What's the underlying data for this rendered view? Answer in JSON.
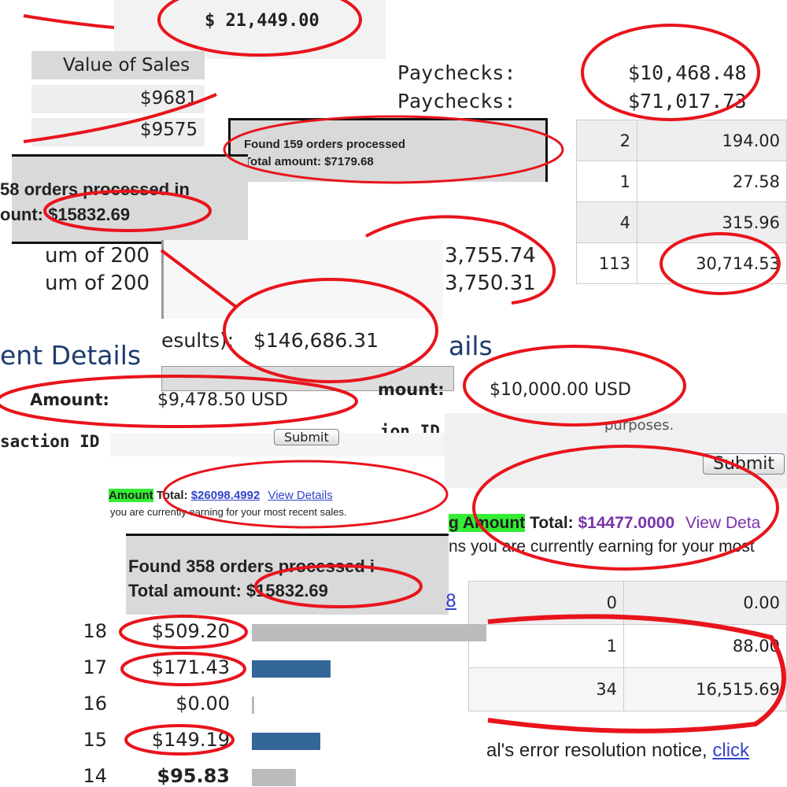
{
  "top_total": "$ 21,449.00",
  "value_of_sales": {
    "header": "Value of Sales",
    "rows": [
      "$9681",
      "$9575"
    ]
  },
  "paychecks": {
    "labels": [
      "Paychecks:",
      "Paychecks:"
    ],
    "values": [
      "$10,468.48",
      "$71,017.73"
    ]
  },
  "found_159": [
    "Found 159 orders processed",
    "Total amount: $7179.68"
  ],
  "table_right": [
    [
      "2",
      "194.00"
    ],
    [
      "1",
      "27.58"
    ],
    [
      "4",
      "315.96"
    ],
    [
      "113",
      "30,714.53"
    ]
  ],
  "found_358_cut": [
    "58 orders processed in",
    "ount: $15832.69"
  ],
  "sum_of": [
    "um of 200",
    "um of 200"
  ],
  "sum_values": [
    "3,755.74",
    "3,750.31"
  ],
  "results": {
    "label": "esults):",
    "value": "$146,686.31"
  },
  "details_left": {
    "heading": "ent Details",
    "amount_label": "Amount:",
    "amount": "$9,478.50 USD",
    "transaction": "saction ID"
  },
  "details_right": {
    "heading": "ails",
    "amount_label": "mount:",
    "amount": "$10,000.00 USD",
    "transaction": "ion ID",
    "note": "purposes."
  },
  "submit_buttons": [
    "Submit",
    "Submit"
  ],
  "earnings_left": {
    "tag": "Amount",
    "total_label": "Total:",
    "total": "$26098.4992",
    "link": "View Details",
    "note": "you are currently earning for your most recent sales."
  },
  "earnings_right": {
    "tag": "g Amount",
    "total_label": "Total:",
    "total": "$14477.0000",
    "link": "View Deta",
    "note": "ns you are currently earning for your most"
  },
  "found_358": [
    "Found 358 orders processed i",
    "Total amount: $15832.69"
  ],
  "table_bottom": {
    "link": "8",
    "rows": [
      [
        "0",
        "0.00"
      ],
      [
        "1",
        "88.00"
      ],
      [
        "34",
        "16,515.69"
      ]
    ]
  },
  "notice": {
    "text": "al's error resolution notice,",
    "link": "click"
  },
  "bars": [
    {
      "rank": "18",
      "label": "$509.20",
      "amount": 509.2,
      "color": "#bbbbbb"
    },
    {
      "rank": "17",
      "label": "$171.43",
      "amount": 171.43,
      "color": "#336699"
    },
    {
      "rank": "16",
      "label": "$0.00",
      "amount": 0,
      "color": "#bbbbbb"
    },
    {
      "rank": "15",
      "label": "$149.19",
      "amount": 149.19,
      "color": "#336699"
    },
    {
      "rank": "14",
      "label": "$95.83",
      "amount": 95.83,
      "color": "#bbbbbb"
    }
  ]
}
